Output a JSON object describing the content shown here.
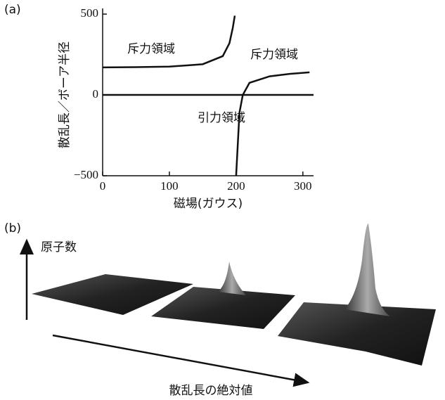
{
  "chart_data": {
    "type": "line",
    "panel_label": "(a)",
    "x_label": "磁場(ガウス)",
    "y_label": "散乱長／ボーア半径",
    "xlim": [
      0,
      316
    ],
    "ylim": [
      -500,
      535
    ],
    "xticks": [
      0,
      100,
      200,
      300
    ],
    "yticks": [
      {
        "value": -500,
        "label": "−500"
      },
      0,
      500
    ],
    "series": [
      {
        "color": "#111111",
        "x": [
          0,
          50,
          100,
          150,
          180,
          190,
          195,
          198,
          199,
          200,
          205,
          210,
          220,
          250,
          280,
          310
        ],
        "values": [
          170,
          172,
          175,
          190,
          240,
          320,
          415,
          490,
          null,
          -500,
          -110,
          0,
          75,
          115,
          130,
          140
        ]
      },
      {
        "color": "#111111",
        "x": [
          0,
          316
        ],
        "values": [
          0,
          0
        ]
      }
    ],
    "annotations": [
      "斥力領域",
      "斥力領域",
      "引力領域"
    ]
  },
  "panel_b": {
    "label": "(b)",
    "y_arrow_label": "原子数",
    "x_arrow_label": "散乱長の絶対値"
  }
}
